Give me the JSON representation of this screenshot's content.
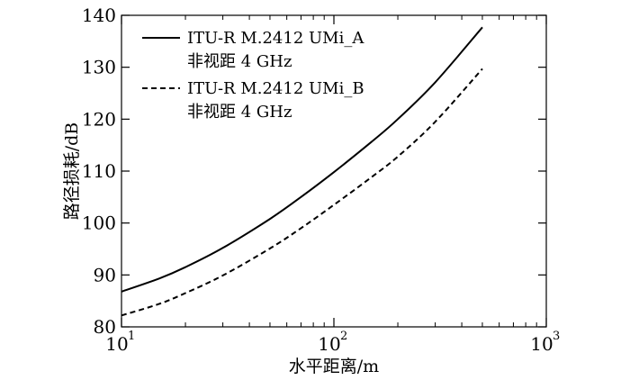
{
  "chart_data": {
    "type": "line",
    "title": "",
    "xlabel": "水平距离/m",
    "ylabel": "路径损耗/dB",
    "xscale": "log",
    "xlim": [
      10,
      1000
    ],
    "ylim": [
      80,
      140
    ],
    "x_ticks": [
      {
        "value": 10,
        "base": "10",
        "exp": "1"
      },
      {
        "value": 100,
        "base": "10",
        "exp": "2"
      },
      {
        "value": 1000,
        "base": "10",
        "exp": "3"
      }
    ],
    "y_ticks": [
      80,
      90,
      100,
      110,
      120,
      130,
      140
    ],
    "grid": false,
    "legend_position": "top-left",
    "series": [
      {
        "name": "ITU-R M.2412 UMi_A",
        "name_line2": "非视距 4 GHz",
        "style": "solid",
        "color": "#000000",
        "x": [
          10,
          15,
          20,
          30,
          50,
          70,
          100,
          150,
          200,
          300,
          500
        ],
        "y": [
          86.8,
          89.3,
          91.5,
          95.2,
          100.8,
          105.0,
          109.8,
          115.6,
          120.0,
          127.1,
          137.7
        ]
      },
      {
        "name": "ITU-R M.2412 UMi_B",
        "name_line2": "非视距 4 GHz",
        "style": "dashed",
        "color": "#000000",
        "x": [
          10,
          15,
          20,
          30,
          50,
          70,
          100,
          150,
          200,
          300,
          500
        ],
        "y": [
          82.2,
          84.4,
          86.5,
          89.9,
          95.1,
          99.0,
          103.5,
          108.8,
          112.8,
          119.5,
          129.7
        ]
      }
    ]
  }
}
